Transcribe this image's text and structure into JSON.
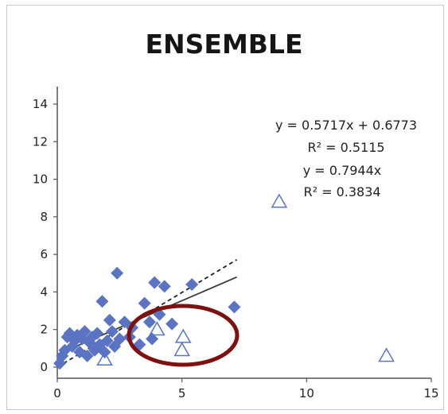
{
  "chart_data": {
    "type": "scatter",
    "title": "ENSEMBLE",
    "xlabel": "",
    "ylabel": "",
    "xlim": [
      0,
      15
    ],
    "ylim": [
      0,
      14
    ],
    "xticks": [
      0,
      5,
      10,
      15
    ],
    "yticks": [
      0,
      2,
      4,
      6,
      8,
      10,
      12,
      14
    ],
    "grid": false,
    "legend": "none",
    "colors": {
      "diamond": "#5a73c2",
      "triangle": "#5a73c2",
      "solid_line": "#3a3a3a",
      "dashed_line": "#222222",
      "highlight_ellipse": "#7e1010"
    },
    "series": [
      {
        "marker": "diamond",
        "points": [
          [
            0.1,
            0.2
          ],
          [
            0.2,
            0.6
          ],
          [
            0.3,
            0.9
          ],
          [
            0.4,
            1.6
          ],
          [
            0.5,
            1.8
          ],
          [
            0.6,
            1.1
          ],
          [
            0.7,
            1.4
          ],
          [
            0.8,
            1.7
          ],
          [
            0.9,
            0.8
          ],
          [
            1.0,
            1.5
          ],
          [
            1.1,
            1.9
          ],
          [
            1.2,
            0.6
          ],
          [
            1.3,
            1.3
          ],
          [
            1.4,
            1.6
          ],
          [
            1.5,
            0.9
          ],
          [
            1.6,
            1.8
          ],
          [
            1.7,
            1.2
          ],
          [
            1.8,
            3.5
          ],
          [
            1.9,
            0.8
          ],
          [
            2.0,
            1.4
          ],
          [
            2.1,
            2.5
          ],
          [
            2.2,
            1.9
          ],
          [
            2.3,
            1.1
          ],
          [
            2.4,
            5.0
          ],
          [
            2.5,
            1.5
          ],
          [
            2.7,
            2.4
          ],
          [
            3.0,
            2.1
          ],
          [
            3.3,
            1.2
          ],
          [
            3.5,
            3.4
          ],
          [
            3.7,
            2.4
          ],
          [
            3.9,
            4.5
          ],
          [
            4.1,
            2.8
          ],
          [
            4.3,
            4.3
          ],
          [
            4.6,
            2.3
          ],
          [
            5.4,
            4.4
          ],
          [
            7.1,
            3.2
          ],
          [
            3.8,
            1.5
          ],
          [
            2.9,
            1.6
          ]
        ]
      },
      {
        "marker": "triangle-open",
        "points": [
          [
            1.9,
            0.4
          ],
          [
            4.0,
            2.0
          ],
          [
            5.05,
            1.6
          ],
          [
            5.0,
            0.9
          ],
          [
            8.9,
            8.8
          ],
          [
            13.2,
            0.6
          ]
        ]
      }
    ],
    "trendlines": [
      {
        "style": "solid",
        "slope": 0.5717,
        "intercept": 0.6773,
        "x_range": [
          0,
          7.2
        ]
      },
      {
        "style": "dashed",
        "slope": 0.7944,
        "intercept": 0,
        "x_range": [
          0,
          7.2
        ]
      }
    ],
    "equations": [
      "y = 0.5717x + 0.6773",
      "R² = 0.5115",
      "y = 0.7944x",
      "R² = 0.3834"
    ]
  }
}
